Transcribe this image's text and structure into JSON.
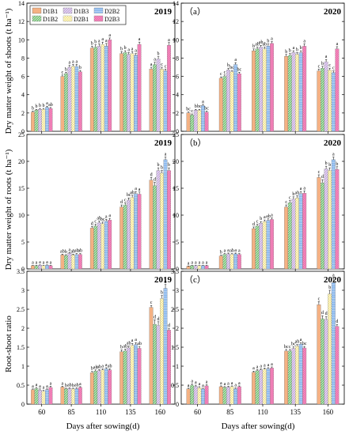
{
  "series_styles": [
    {
      "name": "D1B1",
      "color": "#F4B183",
      "pattern": "none"
    },
    {
      "name": "D1B2",
      "color": "#70C070",
      "pattern": "diag"
    },
    {
      "name": "D1B3",
      "color": "#C4A8DC",
      "pattern": "diag"
    },
    {
      "name": "D2B1",
      "color": "#F2E27A",
      "pattern": "cross"
    },
    {
      "name": "D2B2",
      "color": "#7BAEEA",
      "pattern": "hline"
    },
    {
      "name": "D2B3",
      "color": "#E94E9A",
      "pattern": "check"
    }
  ],
  "legend_order": [
    "D1B1",
    "D1B2",
    "D1B3",
    "D2B1",
    "D2B2",
    "D2B3"
  ],
  "xlabel": "Days after sowing(d)",
  "chart_data": [
    {
      "type": "bar",
      "year": "2019",
      "panel_label": "",
      "ylabel": "Dry matter weight of shoots (t ha⁻¹)",
      "ylim": [
        0,
        14
      ],
      "yticks": [
        0,
        2,
        4,
        6,
        8,
        10,
        12,
        14
      ],
      "categories": [
        "60",
        "85",
        "110",
        "135",
        "160"
      ],
      "series": [
        {
          "name": "D1B1",
          "values": [
            2.1,
            6.0,
            9.1,
            8.5,
            6.8
          ],
          "err": [
            0.1,
            0.15,
            0.2,
            0.2,
            0.2
          ],
          "letters": [
            "b",
            "c",
            "b",
            "b",
            "a"
          ]
        },
        {
          "name": "D1B2",
          "values": [
            2.3,
            6.3,
            9.2,
            8.6,
            7.3
          ],
          "err": [
            0.1,
            0.15,
            0.25,
            0.2,
            0.25
          ],
          "letters": [
            "b",
            "b",
            "b",
            "b",
            "a"
          ]
        },
        {
          "name": "D1B3",
          "values": [
            2.4,
            7.0,
            9.3,
            8.4,
            7.9
          ],
          "err": [
            0.1,
            0.2,
            0.25,
            0.2,
            0.25
          ],
          "letters": [
            "b",
            "a",
            "a",
            "a",
            "b"
          ]
        },
        {
          "name": "D2B1",
          "values": [
            2.4,
            7.1,
            9.5,
            8.5,
            6.8
          ],
          "err": [
            0.1,
            0.2,
            0.25,
            0.2,
            0.2
          ],
          "letters": [
            "b",
            "a",
            "a",
            "a",
            "c"
          ]
        },
        {
          "name": "D2B2",
          "values": [
            2.6,
            7.1,
            9.3,
            8.3,
            6.6
          ],
          "err": [
            0.15,
            0.2,
            0.3,
            0.2,
            0.2
          ],
          "letters": [
            "a",
            "a",
            "a",
            "a",
            "c"
          ]
        },
        {
          "name": "D2B3",
          "values": [
            2.5,
            6.5,
            10.0,
            9.5,
            9.4
          ],
          "err": [
            0.1,
            0.15,
            0.2,
            0.25,
            0.3
          ],
          "letters": [
            "ab",
            "b",
            "a",
            "a",
            "a"
          ]
        }
      ]
    },
    {
      "type": "bar",
      "year": "2020",
      "panel_label": "（a）",
      "ylabel": "",
      "ylim": [
        0,
        14
      ],
      "yticks": [
        0,
        2,
        4,
        6,
        8,
        10,
        12,
        14
      ],
      "categories": [
        "60",
        "85",
        "110",
        "135",
        "160"
      ],
      "series": [
        {
          "name": "D1B1",
          "values": [
            2.0,
            5.8,
            8.8,
            8.2,
            6.6
          ],
          "err": [
            0.1,
            0.15,
            0.2,
            0.2,
            0.2
          ],
          "letters": [
            "bc",
            "c",
            "b",
            "b",
            "c"
          ]
        },
        {
          "name": "D1B2",
          "values": [
            1.8,
            6.0,
            9.0,
            8.3,
            6.9
          ],
          "err": [
            0.1,
            0.15,
            0.2,
            0.2,
            0.2
          ],
          "letters": [
            "c",
            "c",
            "ab",
            "b",
            "b"
          ]
        },
        {
          "name": "D1B3",
          "values": [
            2.3,
            6.7,
            9.2,
            8.6,
            7.6
          ],
          "err": [
            0.1,
            0.2,
            0.2,
            0.2,
            0.25
          ],
          "letters": [
            "b",
            "b",
            "ab",
            "a",
            "a"
          ]
        },
        {
          "name": "D2B1",
          "values": [
            2.3,
            6.5,
            9.0,
            8.4,
            6.7
          ],
          "err": [
            0.1,
            0.15,
            0.2,
            0.2,
            0.2
          ],
          "letters": [
            "bc",
            "bc",
            "ab",
            "b",
            "c"
          ]
        },
        {
          "name": "D2B2",
          "values": [
            2.8,
            7.3,
            9.3,
            8.6,
            6.4
          ],
          "err": [
            0.15,
            0.2,
            0.25,
            0.2,
            0.2
          ],
          "letters": [
            "a",
            "a",
            "b",
            "b",
            "c"
          ]
        },
        {
          "name": "D2B3",
          "values": [
            2.1,
            6.3,
            9.6,
            9.3,
            9.0
          ],
          "err": [
            0.1,
            0.15,
            0.2,
            0.25,
            0.25
          ],
          "letters": [
            "bc",
            "bc",
            "a",
            "a",
            "a"
          ]
        }
      ]
    },
    {
      "type": "bar",
      "year": "2019",
      "panel_label": "",
      "ylabel": "Dry matter weight of roots (t ha⁻¹)",
      "ylim": [
        0,
        25
      ],
      "yticks": [
        0,
        5,
        10,
        15,
        20,
        25
      ],
      "categories": [
        "60",
        "85",
        "110",
        "135",
        "160"
      ],
      "series": [
        {
          "name": "D1B1",
          "values": [
            0.6,
            2.6,
            7.6,
            11.5,
            16.5
          ],
          "err": [
            0.05,
            0.15,
            0.3,
            0.4,
            0.5
          ],
          "letters": [
            "a",
            "ab",
            "d",
            "d",
            "d"
          ]
        },
        {
          "name": "D1B2",
          "values": [
            0.6,
            2.5,
            8.0,
            11.9,
            15.5
          ],
          "err": [
            0.05,
            0.15,
            0.3,
            0.4,
            0.6
          ],
          "letters": [
            "a",
            "b",
            "c",
            "c",
            "d"
          ]
        },
        {
          "name": "D1B3",
          "values": [
            0.7,
            2.9,
            8.6,
            12.8,
            18.3
          ],
          "err": [
            0.05,
            0.15,
            0.3,
            0.4,
            0.5
          ],
          "letters": [
            "a",
            "a",
            "ab",
            "bc",
            "b"
          ]
        },
        {
          "name": "D2B1",
          "values": [
            0.6,
            2.6,
            8.4,
            13.3,
            17.8
          ],
          "err": [
            0.05,
            0.15,
            0.3,
            0.4,
            0.5
          ],
          "letters": [
            "a",
            "ab",
            "bc",
            "ab",
            "b"
          ]
        },
        {
          "name": "D2B2",
          "values": [
            0.7,
            2.7,
            8.9,
            14.0,
            20.3
          ],
          "err": [
            0.05,
            0.15,
            0.3,
            0.4,
            0.5
          ],
          "letters": [
            "a",
            "ab",
            "a",
            "a",
            "a"
          ]
        },
        {
          "name": "D2B3",
          "values": [
            0.6,
            2.7,
            9.1,
            13.9,
            18.3
          ],
          "err": [
            0.05,
            0.15,
            0.3,
            0.4,
            0.5
          ],
          "letters": [
            "a",
            "ab",
            "a",
            "a",
            "b"
          ]
        }
      ]
    },
    {
      "type": "bar",
      "year": "2020",
      "panel_label": "（b）",
      "ylabel": "",
      "ylim": [
        0,
        25
      ],
      "yticks": [
        0,
        5,
        10,
        15,
        20,
        25
      ],
      "categories": [
        "60",
        "85",
        "110",
        "135",
        "160"
      ],
      "series": [
        {
          "name": "D1B1",
          "values": [
            0.5,
            2.4,
            7.5,
            11.5,
            17.0
          ],
          "err": [
            0.05,
            0.15,
            0.3,
            0.4,
            0.5
          ],
          "letters": [
            "a",
            "b",
            "d",
            "c",
            "c"
          ]
        },
        {
          "name": "D1B2",
          "values": [
            0.6,
            2.7,
            8.0,
            12.3,
            16.0
          ],
          "err": [
            0.05,
            0.15,
            0.3,
            0.4,
            0.6
          ],
          "letters": [
            "a",
            "a",
            "c",
            "c",
            "d"
          ]
        },
        {
          "name": "D1B3",
          "values": [
            0.6,
            2.8,
            8.5,
            13.0,
            18.6
          ],
          "err": [
            0.05,
            0.15,
            0.3,
            0.4,
            0.5
          ],
          "letters": [
            "a",
            "a",
            "b",
            "b",
            "b"
          ]
        },
        {
          "name": "D2B1",
          "values": [
            0.6,
            2.7,
            8.8,
            13.2,
            18.3
          ],
          "err": [
            0.05,
            0.15,
            0.3,
            0.4,
            0.5
          ],
          "letters": [
            "a",
            "ab",
            "a",
            "ab",
            "b"
          ]
        },
        {
          "name": "D2B2",
          "values": [
            0.6,
            2.8,
            9.0,
            14.0,
            20.3
          ],
          "err": [
            0.05,
            0.15,
            0.3,
            0.4,
            0.5
          ],
          "letters": [
            "a",
            "a",
            "ab",
            "a",
            "a"
          ]
        },
        {
          "name": "D2B3",
          "values": [
            0.6,
            2.7,
            9.2,
            14.1,
            18.5
          ],
          "err": [
            0.05,
            0.15,
            0.3,
            0.4,
            0.5
          ],
          "letters": [
            "a",
            "a",
            "a",
            "a",
            "b"
          ]
        }
      ]
    },
    {
      "type": "bar",
      "year": "2019",
      "panel_label": "",
      "ylabel": "Root-shoot ratio",
      "ylim": [
        0,
        3.5
      ],
      "yticks": [
        0,
        0.5,
        1,
        1.5,
        2,
        2.5,
        3,
        3.5
      ],
      "categories": [
        "60",
        "85",
        "110",
        "135",
        "160"
      ],
      "series": [
        {
          "name": "D1B1",
          "values": [
            0.38,
            0.45,
            0.83,
            1.38,
            2.55
          ],
          "err": [
            0.02,
            0.02,
            0.03,
            0.05,
            0.05
          ],
          "letters": [
            "a",
            "a",
            "b",
            "b",
            "c"
          ]
        },
        {
          "name": "D1B2",
          "values": [
            0.41,
            0.4,
            0.87,
            1.4,
            2.1
          ],
          "err": [
            0.03,
            0.02,
            0.03,
            0.05,
            0.12
          ],
          "letters": [
            "a",
            "b",
            "ab",
            "ab",
            "d"
          ]
        },
        {
          "name": "D1B3",
          "values": [
            0.37,
            0.41,
            0.88,
            1.48,
            2.07
          ],
          "err": [
            0.03,
            0.02,
            0.03,
            0.05,
            0.1
          ],
          "letters": [
            "a",
            "ab",
            "ab",
            "ab",
            "d"
          ]
        },
        {
          "name": "D2B1",
          "values": [
            0.34,
            0.4,
            0.9,
            1.55,
            2.78
          ],
          "err": [
            0.02,
            0.02,
            0.03,
            0.05,
            0.08
          ],
          "letters": [
            "a",
            "b",
            "a",
            "a",
            "b"
          ]
        },
        {
          "name": "D2B2",
          "values": [
            0.38,
            0.41,
            0.93,
            1.57,
            3.05
          ],
          "err": [
            0.02,
            0.02,
            0.03,
            0.05,
            0.1
          ],
          "letters": [
            "a",
            "ab",
            "a",
            "a",
            "a"
          ]
        },
        {
          "name": "D2B3",
          "values": [
            0.44,
            0.44,
            0.9,
            1.47,
            1.95
          ],
          "err": [
            0.03,
            0.02,
            0.03,
            0.05,
            0.05
          ],
          "letters": [
            "a",
            "a",
            "ab",
            "ab",
            "d"
          ]
        }
      ]
    },
    {
      "type": "bar",
      "year": "2020",
      "panel_label": "（c）",
      "ylabel": "",
      "ylim": [
        0,
        3.5
      ],
      "yticks": [
        0,
        0.5,
        1,
        1.5,
        2,
        2.5,
        3,
        3.5
      ],
      "categories": [
        "60",
        "85",
        "110",
        "135",
        "160"
      ],
      "series": [
        {
          "name": "D1B1",
          "values": [
            0.4,
            0.46,
            0.84,
            1.4,
            2.62
          ],
          "err": [
            0.02,
            0.02,
            0.03,
            0.04,
            0.08
          ],
          "letters": [
            "a",
            "a",
            "a",
            "bc",
            "c"
          ]
        },
        {
          "name": "D1B2",
          "values": [
            0.5,
            0.44,
            0.88,
            1.4,
            2.25
          ],
          "err": [
            0.03,
            0.02,
            0.03,
            0.04,
            0.08
          ],
          "letters": [
            "a",
            "a",
            "a",
            "c",
            "d"
          ]
        },
        {
          "name": "D1B3",
          "values": [
            0.47,
            0.45,
            0.9,
            1.47,
            2.23
          ],
          "err": [
            0.03,
            0.02,
            0.03,
            0.04,
            0.08
          ],
          "letters": [
            "a",
            "a",
            "a",
            "bc",
            "d"
          ]
        },
        {
          "name": "D2B1",
          "values": [
            0.43,
            0.46,
            0.92,
            1.53,
            2.9
          ],
          "err": [
            0.03,
            0.02,
            0.03,
            0.04,
            0.1
          ],
          "letters": [
            "a",
            "a",
            "a",
            "ab",
            "b"
          ]
        },
        {
          "name": "D2B2",
          "values": [
            0.4,
            0.41,
            0.93,
            1.58,
            3.2
          ],
          "err": [
            0.02,
            0.02,
            0.03,
            0.04,
            0.12
          ],
          "letters": [
            "a",
            "a",
            "a",
            "a",
            "a"
          ]
        },
        {
          "name": "D2B3",
          "values": [
            0.48,
            0.46,
            0.95,
            1.48,
            2.05
          ],
          "err": [
            0.03,
            0.02,
            0.03,
            0.04,
            0.05
          ],
          "letters": [
            "a",
            "a",
            "a",
            "bc",
            "d"
          ]
        }
      ]
    }
  ]
}
